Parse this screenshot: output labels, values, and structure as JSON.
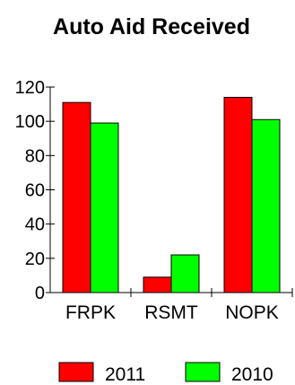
{
  "chart_data": {
    "type": "bar",
    "title": "Auto Aid Received",
    "xlabel": "",
    "ylabel": "",
    "categories": [
      "FRPK",
      "RSMT",
      "NOPK"
    ],
    "series": [
      {
        "name": "2011",
        "color": "#ff0000",
        "values": [
          111,
          9,
          114
        ]
      },
      {
        "name": "2010",
        "color": "#00ff00",
        "values": [
          99,
          22,
          101
        ]
      }
    ],
    "ylim": [
      0,
      120
    ],
    "yticks": [
      0,
      20,
      40,
      60,
      80,
      100,
      120
    ],
    "ytick_labels": [
      "0",
      "20",
      "40",
      "60",
      "80",
      "100",
      "120"
    ],
    "grid": false,
    "legend_position": "bottom"
  }
}
